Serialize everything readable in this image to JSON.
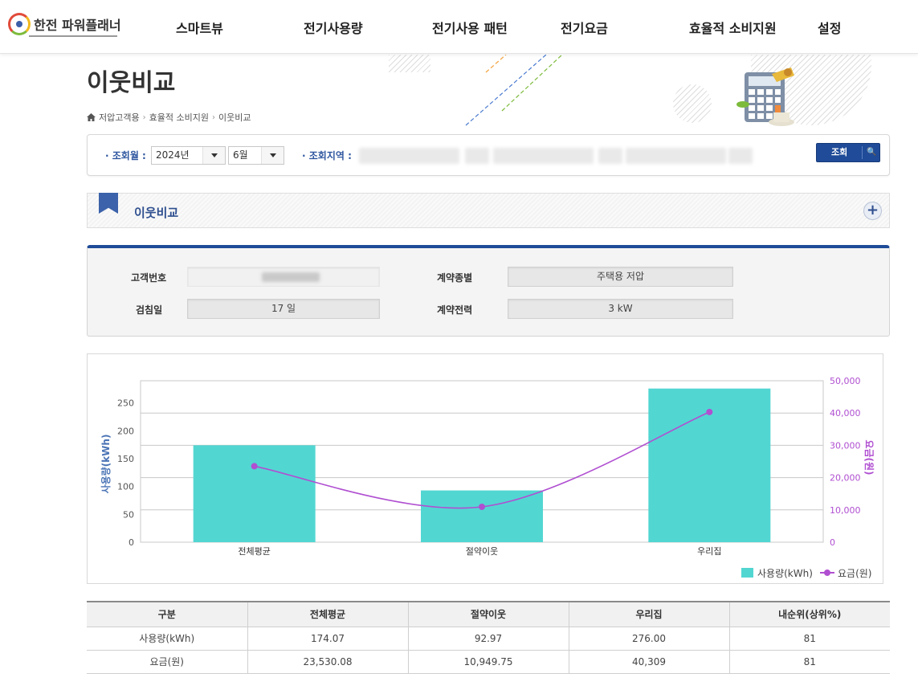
{
  "header": {
    "logo_text": "한전 파워플래너",
    "nav": [
      "스마트뷰",
      "전기사용량",
      "전기사용 패턴",
      "전기요금",
      "효율적 소비지원",
      "설정"
    ]
  },
  "page": {
    "title": "이웃비교",
    "breadcrumb": [
      "저압고객용",
      "효율적 소비지원",
      "이웃비교"
    ]
  },
  "search": {
    "month_label": "· 조회월 :",
    "year_value": "2024년",
    "month_value": "6월",
    "region_label": "· 조회지역 :",
    "button_label": "조회"
  },
  "section": {
    "title": "이웃비교"
  },
  "info": {
    "customer_no_label": "고객번호",
    "contract_type_label": "계약종별",
    "contract_type_value": "주택용 저압",
    "meter_day_label": "검침일",
    "meter_day_value": "17 일",
    "contract_power_label": "계약전력",
    "contract_power_value": "3 kW"
  },
  "chart_data": {
    "type": "bar",
    "categories": [
      "전체평균",
      "절약이웃",
      "우리집"
    ],
    "series": [
      {
        "name": "사용량(kWh)",
        "type": "bar",
        "axis": "left",
        "color": "#52d6d2",
        "values": [
          174.07,
          92.97,
          276.0
        ]
      },
      {
        "name": "요금(원)",
        "type": "line",
        "axis": "right",
        "color": "#b04fd1",
        "values": [
          23530.08,
          10949.75,
          40309
        ]
      }
    ],
    "ylabel": "사용량(kWh)",
    "y2label": "요금(원)",
    "ylim": [
      0,
      290
    ],
    "y2lim": [
      0,
      50000
    ],
    "yticks": [
      0,
      50,
      100,
      150,
      200,
      250
    ],
    "y2ticks": [
      0,
      10000,
      20000,
      30000,
      40000,
      50000
    ],
    "grid": true,
    "legend": "bottom-right"
  },
  "table": {
    "headers": [
      "구분",
      "전체평균",
      "절약이웃",
      "우리집",
      "내순위(상위%)"
    ],
    "rows": [
      [
        "사용량(kWh)",
        "174.07",
        "92.97",
        "276.00",
        "81"
      ],
      [
        "요금(원)",
        "23,530.08",
        "10,949.75",
        "40,309",
        "81"
      ]
    ]
  }
}
